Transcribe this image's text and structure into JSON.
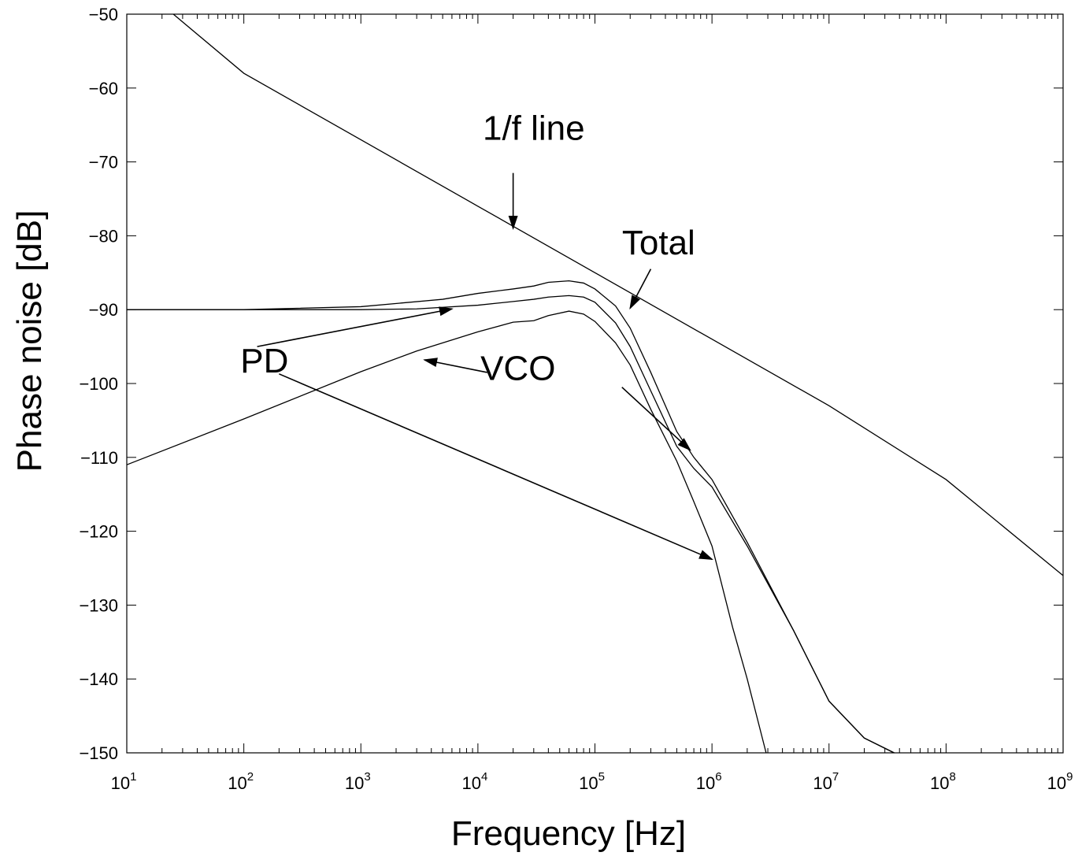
{
  "chart_data": {
    "type": "line",
    "title": "",
    "xlabel": "Frequency [Hz]",
    "ylabel": "Phase noise [dB]",
    "xscale": "log",
    "xlim": [
      10,
      1000000000
    ],
    "ylim": [
      -150,
      -50
    ],
    "grid": false,
    "x_ticks": [
      {
        "base": "10",
        "exp": "1",
        "value": 10
      },
      {
        "base": "10",
        "exp": "2",
        "value": 100
      },
      {
        "base": "10",
        "exp": "3",
        "value": 1000
      },
      {
        "base": "10",
        "exp": "4",
        "value": 10000
      },
      {
        "base": "10",
        "exp": "5",
        "value": 100000
      },
      {
        "base": "10",
        "exp": "6",
        "value": 1000000
      },
      {
        "base": "10",
        "exp": "7",
        "value": 10000000
      },
      {
        "base": "10",
        "exp": "8",
        "value": 100000000
      },
      {
        "base": "10",
        "exp": "9",
        "value": 1000000000
      }
    ],
    "y_ticks": [
      {
        "label": "−50",
        "value": -50
      },
      {
        "label": "−60",
        "value": -60
      },
      {
        "label": "−70",
        "value": -70
      },
      {
        "label": "−80",
        "value": -80
      },
      {
        "label": "−90",
        "value": -90
      },
      {
        "label": "−100",
        "value": -100
      },
      {
        "label": "−110",
        "value": -110
      },
      {
        "label": "−120",
        "value": -120
      },
      {
        "label": "−130",
        "value": -130
      },
      {
        "label": "−140",
        "value": -140
      },
      {
        "label": "−150",
        "value": -150
      }
    ],
    "series": [
      {
        "id": "one-over-f",
        "x": [
          25,
          100,
          1000,
          10000,
          100000,
          1000000,
          10000000,
          100000000,
          1000000000
        ],
        "y": [
          -50,
          -58,
          -67,
          -76,
          -85,
          -94,
          -103,
          -113,
          -126
        ]
      },
      {
        "id": "total",
        "x": [
          10,
          100,
          1000,
          5000,
          10000,
          20000,
          30000,
          40000,
          60000,
          80000,
          100000,
          150000,
          200000,
          300000,
          500000,
          700000,
          1000000,
          2000000,
          5000000,
          10000000,
          20000000,
          36000000
        ],
        "y": [
          -90,
          -90,
          -89.6,
          -88.6,
          -87.8,
          -87.2,
          -86.8,
          -86.3,
          -86.1,
          -86.4,
          -87.2,
          -89.5,
          -92.5,
          -98.5,
          -106.5,
          -110,
          -113,
          -121.5,
          -133.5,
          -143,
          -148,
          -150
        ]
      },
      {
        "id": "pd",
        "x": [
          10,
          100,
          1000,
          3000,
          10000,
          20000,
          30000,
          40000,
          60000,
          80000,
          100000,
          150000,
          200000,
          300000,
          500000,
          700000,
          1000000,
          2000000,
          5000000,
          10000000,
          20000000,
          36000000
        ],
        "y": [
          -90,
          -90,
          -90,
          -89.9,
          -89.4,
          -88.9,
          -88.6,
          -88.3,
          -88.1,
          -88.3,
          -89,
          -91.8,
          -95,
          -101,
          -108.5,
          -111.5,
          -114,
          -122,
          -133.5,
          -143,
          -148,
          -150
        ]
      },
      {
        "id": "vco",
        "x": [
          10,
          100,
          1000,
          3000,
          10000,
          20000,
          30000,
          40000,
          60000,
          80000,
          100000,
          150000,
          200000,
          300000,
          500000,
          700000,
          1000000,
          1500000,
          2000000,
          2900000
        ],
        "y": [
          -111,
          -104.8,
          -98.4,
          -95.6,
          -93,
          -91.7,
          -91.5,
          -90.8,
          -90.2,
          -90.6,
          -91.6,
          -94.5,
          -97.5,
          -103.5,
          -110.5,
          -116,
          -122,
          -133,
          -140,
          -150
        ]
      }
    ],
    "annotations": [
      {
        "text": "1/f line",
        "x": 30000,
        "y": -67,
        "arrows": [
          {
            "from": [
              20000,
              -71.5
            ],
            "to": [
              20000,
              -79
            ]
          }
        ]
      },
      {
        "text": "Total",
        "x": 350000,
        "y": -82.5,
        "arrows": [
          {
            "from": [
              300000,
              -84.5
            ],
            "to": [
              200000,
              -89.8
            ]
          }
        ]
      },
      {
        "text": "PD",
        "x": 150,
        "y": -98.5,
        "arrows": [
          {
            "from": [
              130,
              -95
            ],
            "to": [
              6000,
              -89.9
            ]
          },
          {
            "from": [
              200,
              -98.7
            ],
            "to": [
              1000000,
              -123.8
            ]
          }
        ]
      },
      {
        "text": "VCO",
        "x": 22000,
        "y": -99.5,
        "arrows": [
          {
            "from": [
              12000,
              -98.5
            ],
            "to": [
              3500,
              -96.8
            ]
          },
          {
            "from": [
              170000,
              -100.5
            ],
            "to": [
              650000,
              -109
            ]
          }
        ]
      }
    ]
  }
}
